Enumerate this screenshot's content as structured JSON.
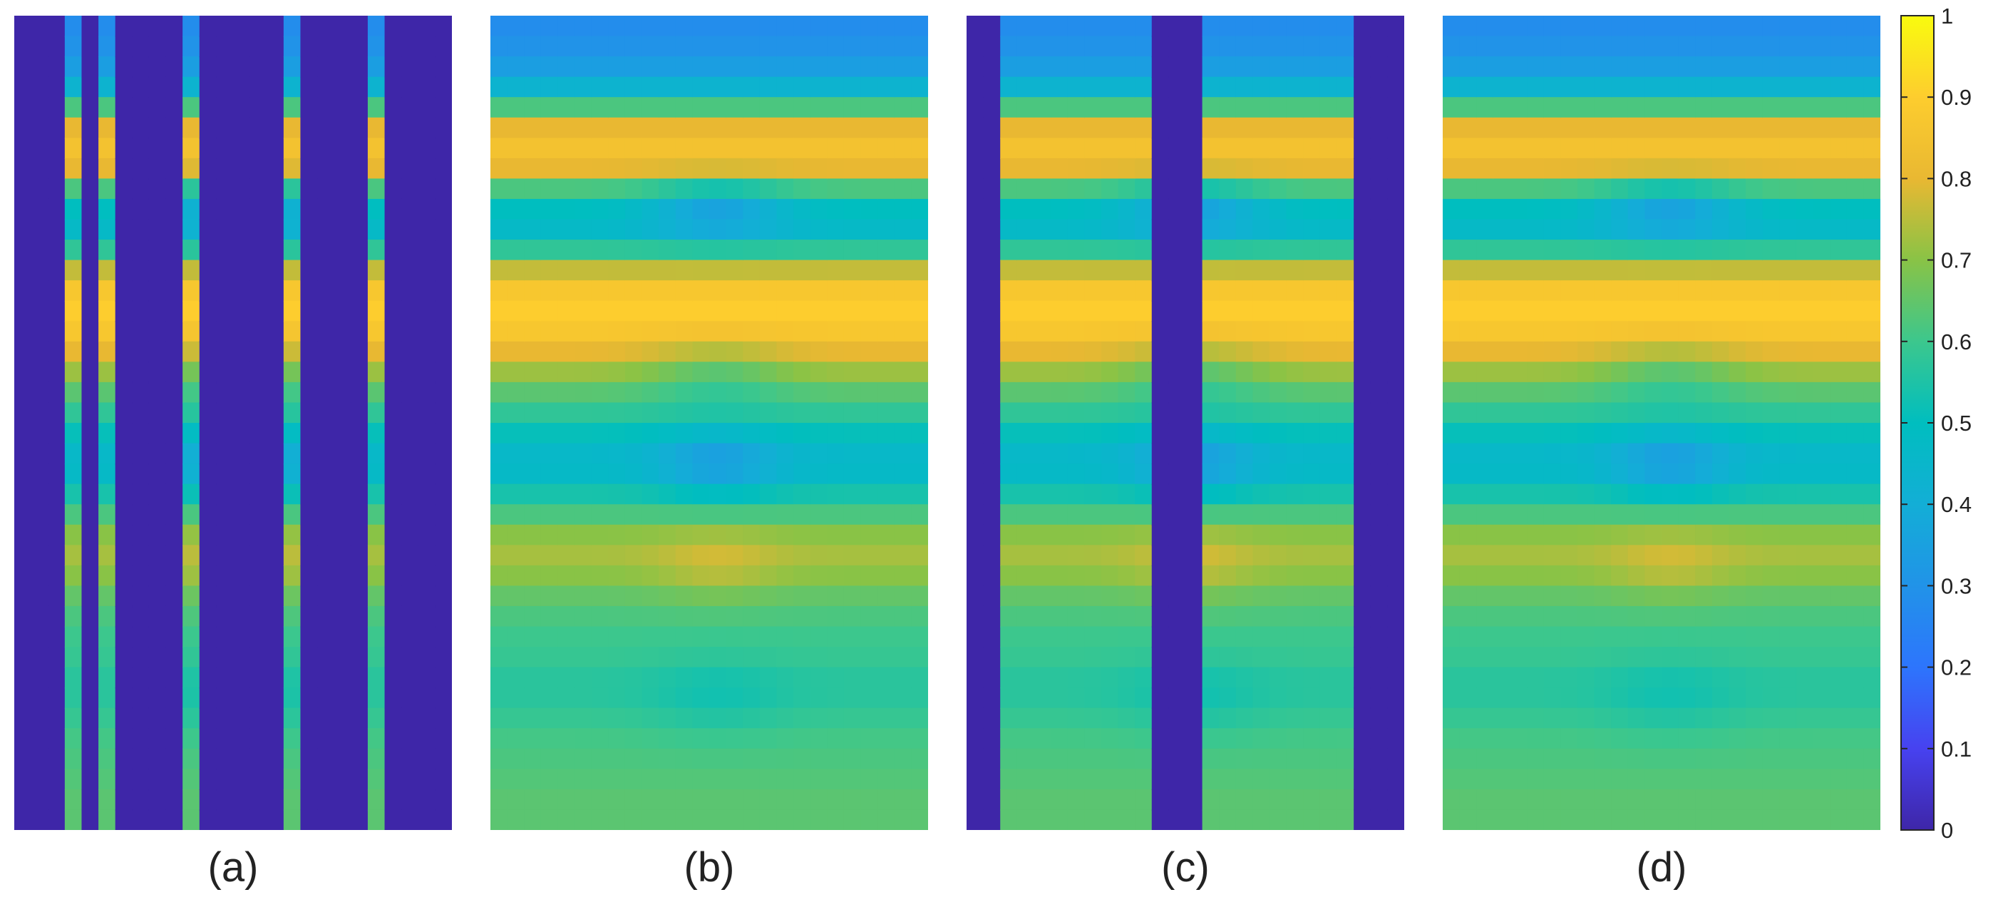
{
  "chart_data": {
    "type": "heatmap",
    "title": "",
    "colormap": "parula",
    "colorbar": {
      "range": [
        0,
        1
      ],
      "ticks": [
        0,
        0.1,
        0.2,
        0.3,
        0.4,
        0.5,
        0.6,
        0.7,
        0.8,
        0.9,
        1
      ],
      "tick_labels": [
        "0",
        "0.1",
        "0.2",
        "0.3",
        "0.4",
        "0.5",
        "0.6",
        "0.7",
        "0.8",
        "0.9",
        "1"
      ]
    },
    "panels": [
      {
        "label": "(a)",
        "columns": 26,
        "observed_columns": [
          3,
          5,
          10,
          16,
          21
        ],
        "note": "only a few columns observed; all other columns are 0"
      },
      {
        "label": "(b)",
        "columns": 26,
        "observed_columns": "all"
      },
      {
        "label": "(c)",
        "columns": 26,
        "zero_columns": [
          0,
          1,
          11,
          12,
          13,
          23,
          24,
          25
        ]
      },
      {
        "label": "(d)",
        "columns": 26,
        "observed_columns": "all"
      }
    ],
    "row_profile": {
      "description": "value by row (top to bottom) at the center column of the field",
      "rows": 40,
      "values": [
        0.28,
        0.3,
        0.34,
        0.43,
        0.62,
        0.8,
        0.85,
        0.8,
        0.62,
        0.5,
        0.47,
        0.58,
        0.76,
        0.87,
        0.9,
        0.87,
        0.8,
        0.72,
        0.64,
        0.58,
        0.51,
        0.46,
        0.47,
        0.54,
        0.62,
        0.7,
        0.73,
        0.7,
        0.65,
        0.62,
        0.6,
        0.59,
        0.57,
        0.57,
        0.59,
        0.61,
        0.62,
        0.63,
        0.64,
        0.64
      ]
    }
  },
  "colors": {
    "zero": "#3e26a8",
    "one": "#f9fb0e",
    "background": "#ffffff"
  }
}
